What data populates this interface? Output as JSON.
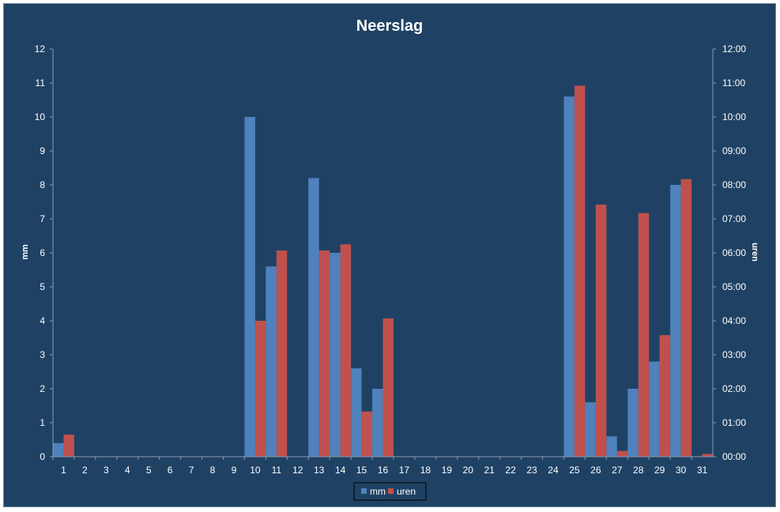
{
  "chart_data": {
    "type": "bar",
    "title": "Neerslag",
    "ylabel": "mm",
    "y2label": "uren",
    "ylim": [
      0,
      12
    ],
    "y2lim_hours": [
      0,
      12
    ],
    "yticks": [
      "0",
      "1",
      "2",
      "3",
      "4",
      "5",
      "6",
      "7",
      "8",
      "9",
      "10",
      "11",
      "12"
    ],
    "y2ticks": [
      "00:00",
      "01:00",
      "02:00",
      "03:00",
      "04:00",
      "05:00",
      "06:00",
      "07:00",
      "08:00",
      "09:00",
      "10:00",
      "11:00",
      "12:00"
    ],
    "categories": [
      "1",
      "2",
      "3",
      "4",
      "5",
      "6",
      "7",
      "8",
      "9",
      "10",
      "11",
      "12",
      "13",
      "14",
      "15",
      "16",
      "17",
      "18",
      "19",
      "20",
      "21",
      "22",
      "23",
      "24",
      "25",
      "26",
      "27",
      "28",
      "29",
      "30",
      "31"
    ],
    "series": [
      {
        "name": "mm",
        "axis": "left",
        "color": "#4f81bd",
        "values": [
          0.4,
          0,
          0,
          0,
          0,
          0,
          0,
          0,
          0,
          10,
          5.6,
          0,
          8.2,
          6,
          2.6,
          2,
          0,
          0,
          0,
          0,
          0,
          0,
          0,
          0,
          10.6,
          1.6,
          0.6,
          2,
          2.8,
          8,
          0
        ]
      },
      {
        "name": "uren",
        "axis": "right",
        "color": "#c0504d",
        "values": [
          0.65,
          0,
          0,
          0,
          0,
          0,
          0,
          0,
          0,
          4,
          6.07,
          0,
          6.07,
          6.25,
          1.33,
          4.07,
          0,
          0,
          0,
          0,
          0,
          0,
          0,
          0,
          10.92,
          7.42,
          0.17,
          7.17,
          3.58,
          8.17,
          0.08
        ]
      }
    ],
    "legend": {
      "position": "bottom",
      "entries": [
        "mm",
        "uren"
      ]
    },
    "grid": false
  }
}
